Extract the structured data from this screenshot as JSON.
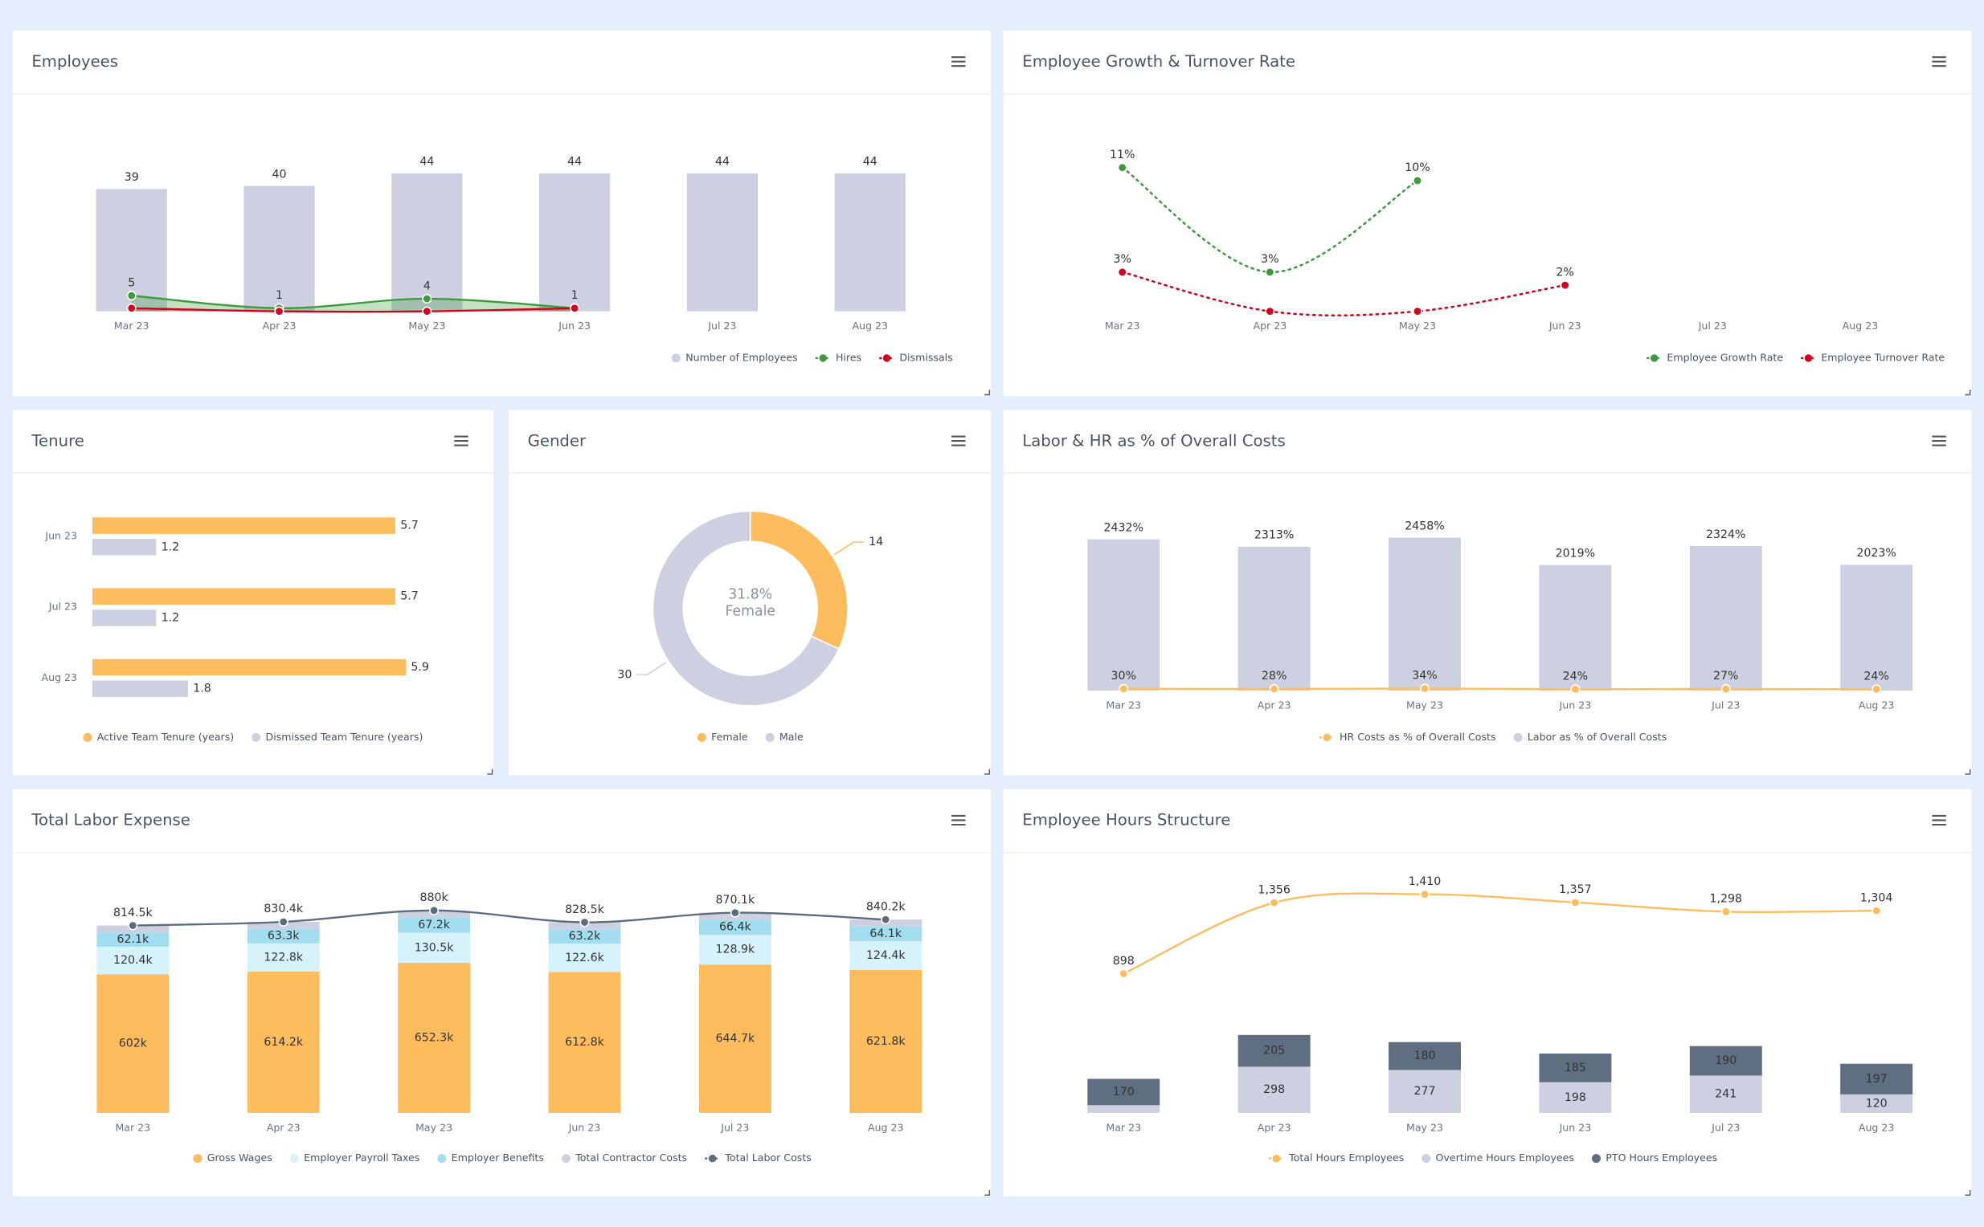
{
  "chart_data": [
    {
      "type": "combo",
      "title": "Employees",
      "legend": "bottom-right",
      "ylim": [
        0,
        50
      ],
      "categories": [
        "Mar 23",
        "Apr 23",
        "May 23",
        "Jun 23",
        "Jul 23",
        "Aug 23"
      ],
      "series": [
        {
          "name": "Number of Employees",
          "type": "bar",
          "color": "#cdd0e0",
          "data_labels": true,
          "values": [
            39,
            40,
            44,
            44,
            44,
            44
          ]
        },
        {
          "name": "Hires",
          "type": "area",
          "color": "#3d9a3d",
          "data_labels": true,
          "values": [
            5,
            1,
            4,
            1,
            null,
            null
          ]
        },
        {
          "name": "Dismissals",
          "type": "area",
          "color": "#d6001c",
          "values": [
            1,
            0,
            0,
            1,
            null,
            null
          ]
        }
      ]
    },
    {
      "type": "combo",
      "title": "Employee Growth & Turnover Rate",
      "legend": "bottom-right",
      "ylim": [
        0,
        12
      ],
      "categories": [
        "Mar 23",
        "Apr 23",
        "May 23",
        "Jun 23",
        "Jul 23",
        "Aug 23"
      ],
      "series": [
        {
          "name": "Employee Growth Rate",
          "type": "line",
          "line_style": "dotted",
          "color": "#3d9a3d",
          "values": [
            11,
            3,
            10,
            null,
            null,
            null
          ],
          "value_labels": [
            "11%",
            "3%",
            "10%",
            null,
            null,
            null
          ]
        },
        {
          "name": "Employee Turnover Rate",
          "type": "line",
          "line_style": "dotted",
          "color": "#d6001c",
          "values": [
            3,
            0,
            0,
            2,
            null,
            null
          ],
          "value_labels": [
            "3%",
            null,
            null,
            "2%",
            null,
            null
          ]
        }
      ]
    },
    {
      "type": "hbar",
      "title": "Tenure",
      "legend": "bottom",
      "xlim": [
        0,
        7
      ],
      "categories": [
        "Jun 23",
        "Jul 23",
        "Aug 23"
      ],
      "series": [
        {
          "name": "Active Team Tenure (years)",
          "color": "#ffbc5c",
          "values": [
            5.7,
            5.7,
            5.9
          ]
        },
        {
          "name": "Dismissed Team Tenure (years)",
          "color": "#cdd0e0",
          "values": [
            1.2,
            1.2,
            1.8
          ]
        }
      ]
    },
    {
      "type": "donut",
      "title": "Gender",
      "legend": "bottom",
      "categories": [
        "Female",
        "Male"
      ],
      "values": [
        14,
        30
      ],
      "colors": [
        "#ffbc5c",
        "#cdd0e0"
      ],
      "center_text": [
        "31.8%",
        "Female"
      ]
    },
    {
      "type": "combo",
      "title": "Labor & HR as % of Overall Costs",
      "legend": "bottom",
      "ylim": [
        0,
        2500
      ],
      "categories": [
        "Mar 23",
        "Apr 23",
        "May 23",
        "Jun 23",
        "Jul 23",
        "Aug 23"
      ],
      "series": [
        {
          "name": "HR Costs as % of Overall Costs",
          "type": "line",
          "color": "#ffbc5c",
          "values": [
            30,
            28,
            34,
            24,
            27,
            24
          ],
          "value_labels": [
            "30%",
            "28%",
            "34%",
            "24%",
            "27%",
            "24%"
          ]
        },
        {
          "name": "Labor as % of Overall Costs",
          "type": "bar",
          "color": "#cdd0e0",
          "values": [
            2432,
            2313,
            2458,
            2019,
            2324,
            2023
          ],
          "value_labels": [
            "2432%",
            "2313%",
            "2458%",
            "2019%",
            "2324%",
            "2023%"
          ]
        }
      ]
    },
    {
      "type": "combo",
      "title": "Total Labor Expense",
      "legend": "bottom",
      "stacked": true,
      "ylim": [
        0,
        1000000
      ],
      "categories": [
        "Mar 23",
        "Apr 23",
        "May 23",
        "Jun 23",
        "Jul 23",
        "Aug 23"
      ],
      "series": [
        {
          "name": "Gross Wages",
          "type": "bar",
          "color": "#ffbc5c",
          "values": [
            602000,
            614200,
            652300,
            612800,
            644700,
            621800
          ],
          "value_labels": [
            "602k",
            "614.2k",
            "652.3k",
            "612.8k",
            "644.7k",
            "621.8k"
          ]
        },
        {
          "name": "Employer Payroll Taxes",
          "type": "bar",
          "color": "#d6f2fb",
          "values": [
            120400,
            122800,
            130500,
            122600,
            128900,
            124400
          ],
          "value_labels": [
            "120.4k",
            "122.8k",
            "130.5k",
            "122.6k",
            "128.9k",
            "124.4k"
          ]
        },
        {
          "name": "Employer Benefits",
          "type": "bar",
          "color": "#a3ddf0",
          "values": [
            62100,
            63300,
            67200,
            63200,
            66400,
            64100
          ],
          "value_labels": [
            "62.1k",
            "63.3k",
            "67.2k",
            "63.2k",
            "66.4k",
            "64.1k"
          ]
        },
        {
          "name": "Total Contractor Costs",
          "type": "bar",
          "color": "#cdd0e0",
          "values": [
            30000,
            30100,
            30000,
            29900,
            30100,
            29900
          ]
        },
        {
          "name": "Total Labor Costs",
          "type": "line",
          "color": "#5d6b7e",
          "values": [
            814500,
            830400,
            880000,
            828500,
            870100,
            840200
          ],
          "value_labels": [
            "814.5k",
            "830.4k",
            "880k",
            "828.5k",
            "870.1k",
            "840.2k"
          ]
        }
      ]
    },
    {
      "type": "combo",
      "title": "Employee Hours Structure",
      "legend": "bottom",
      "stacked": true,
      "ylim": [
        0,
        1500
      ],
      "categories": [
        "Mar 23",
        "Apr 23",
        "May 23",
        "Jun 23",
        "Jul 23",
        "Aug 23"
      ],
      "series": [
        {
          "name": "Total Hours Employees",
          "type": "line",
          "color": "#ffbc5c",
          "values": [
            898,
            1356,
            1410,
            1357,
            1298,
            1304
          ],
          "value_labels": [
            "898",
            "1,356",
            "1,410",
            "1,357",
            "1,298",
            "1,304"
          ]
        },
        {
          "name": "Overtime Hours Employees",
          "type": "bar",
          "color": "#cdd0e0",
          "values": [
            50,
            298,
            277,
            198,
            241,
            120
          ],
          "value_labels": [
            null,
            "298",
            "277",
            "198",
            "241",
            "120"
          ]
        },
        {
          "name": "PTO Hours Employees",
          "type": "bar",
          "color": "#5f6e80",
          "data_labels": true,
          "values": [
            170,
            205,
            180,
            185,
            190,
            197
          ]
        }
      ]
    }
  ]
}
